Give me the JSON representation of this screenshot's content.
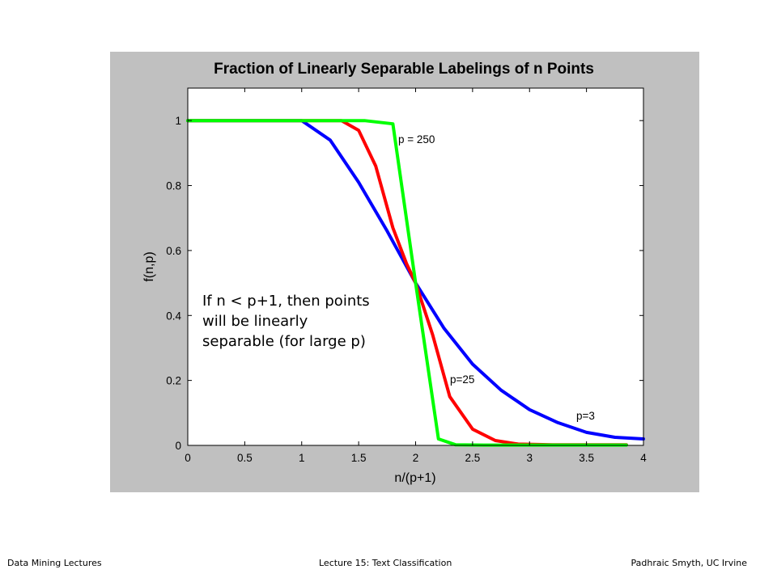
{
  "footer": {
    "left": "Data Mining Lectures",
    "center": "Lecture 15: Text Classification",
    "right": "Padhraic Smyth, UC Irvine"
  },
  "annotation": {
    "lines": [
      "If n < p+1, then points",
      "will be linearly",
      "separable (for large p)"
    ]
  },
  "colors": {
    "panel_background": "#c0c0c0",
    "plot_background": "#ffffff",
    "series_p3": "#0000ff",
    "series_p25": "#ff0000",
    "series_p250": "#00ff00"
  },
  "chart_data": {
    "type": "line",
    "title": "Fraction of Linearly Separable Labelings of n Points",
    "xlabel": "n/(p+1)",
    "ylabel": "f(n,p)",
    "xlim": [
      0,
      4
    ],
    "ylim": [
      0,
      1.1
    ],
    "xticks": [
      "0",
      "0.5",
      "1",
      "1.5",
      "2",
      "2.5",
      "3",
      "3.5",
      "4"
    ],
    "yticks": [
      "0",
      "0.2",
      "0.4",
      "0.6",
      "0.8",
      "1"
    ],
    "grid": false,
    "legend": "none",
    "series": [
      {
        "name": "p=3",
        "color": "#0000ff",
        "x": [
          0,
          1.0,
          1.25,
          1.5,
          1.75,
          2.0,
          2.25,
          2.5,
          2.75,
          3.0,
          3.25,
          3.5,
          3.75,
          4.0
        ],
        "y": [
          1,
          1,
          0.94,
          0.81,
          0.66,
          0.5,
          0.36,
          0.25,
          0.17,
          0.11,
          0.07,
          0.04,
          0.025,
          0.02
        ]
      },
      {
        "name": "p=25",
        "color": "#ff0000",
        "x": [
          0,
          1.35,
          1.5,
          1.65,
          1.8,
          1.92,
          2.0,
          2.15,
          2.3,
          2.5,
          2.7,
          2.9,
          3.2,
          3.85
        ],
        "y": [
          1,
          1,
          0.97,
          0.86,
          0.67,
          0.56,
          0.5,
          0.34,
          0.15,
          0.05,
          0.015,
          0.004,
          0.002,
          0.002
        ]
      },
      {
        "name": "p = 250",
        "color": "#00ff00",
        "x": [
          0,
          1.55,
          1.8,
          2.0,
          2.2,
          2.35,
          2.6,
          3.0,
          3.85
        ],
        "y": [
          1,
          1,
          0.99,
          0.5,
          0.02,
          0.002,
          0.001,
          0.001,
          0.001
        ]
      }
    ]
  }
}
